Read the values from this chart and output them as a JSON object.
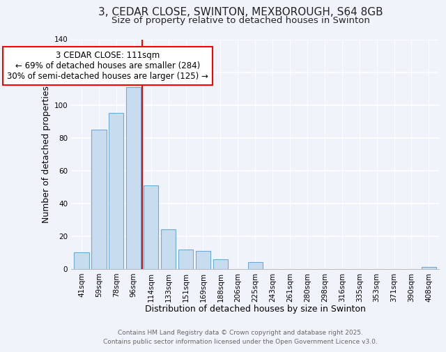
{
  "title": "3, CEDAR CLOSE, SWINTON, MEXBOROUGH, S64 8GB",
  "subtitle": "Size of property relative to detached houses in Swinton",
  "xlabel": "Distribution of detached houses by size in Swinton",
  "ylabel": "Number of detached properties",
  "bar_color": "#c8dcf0",
  "bar_edge_color": "#6aaad4",
  "background_color": "#f0f4fa",
  "grid_color": "#ffffff",
  "categories": [
    "41sqm",
    "59sqm",
    "78sqm",
    "96sqm",
    "114sqm",
    "133sqm",
    "151sqm",
    "169sqm",
    "188sqm",
    "206sqm",
    "225sqm",
    "243sqm",
    "261sqm",
    "280sqm",
    "298sqm",
    "316sqm",
    "335sqm",
    "353sqm",
    "371sqm",
    "390sqm",
    "408sqm"
  ],
  "values": [
    10,
    85,
    95,
    111,
    51,
    24,
    12,
    11,
    6,
    0,
    4,
    0,
    0,
    0,
    0,
    0,
    0,
    0,
    0,
    0,
    1
  ],
  "ylim": [
    0,
    140
  ],
  "yticks": [
    0,
    20,
    40,
    60,
    80,
    100,
    120,
    140
  ],
  "redline_index": 4,
  "annotation_title": "3 CEDAR CLOSE: 111sqm",
  "annotation_line1": "← 69% of detached houses are smaller (284)",
  "annotation_line2": "30% of semi-detached houses are larger (125) →",
  "footer_line1": "Contains HM Land Registry data © Crown copyright and database right 2025.",
  "footer_line2": "Contains public sector information licensed under the Open Government Licence v3.0.",
  "title_fontsize": 11,
  "subtitle_fontsize": 9.5,
  "axis_label_fontsize": 9,
  "tick_fontsize": 7.5,
  "annotation_fontsize": 8.5,
  "footer_fontsize": 6.5
}
